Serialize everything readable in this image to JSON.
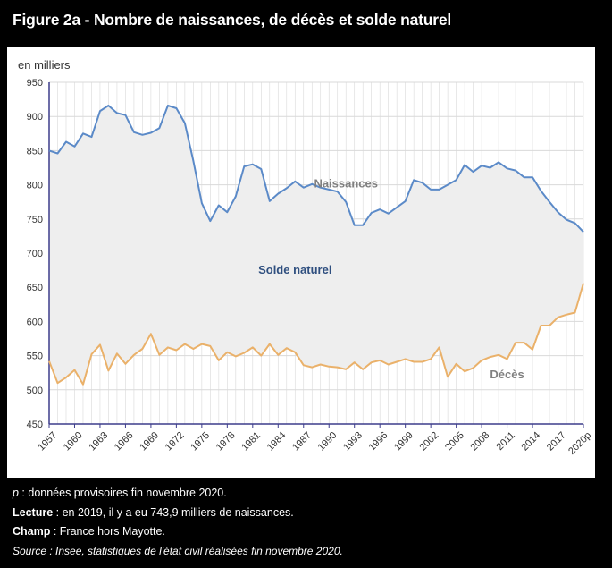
{
  "figure": {
    "title": "Figure 2a - Nombre de naissances, de décès et solde naturel"
  },
  "notes": {
    "provisional_key": "p",
    "provisional_text": " : données provisoires fin novembre 2020.",
    "reading_label": "Lecture",
    "reading_text": " : en 2019, il y a eu 743,9 milliers de naissances.",
    "scope_label": "Champ",
    "scope_text": " : France hors Mayotte.",
    "source": "Source : Insee, statistiques de l'état civil réalisées fin novembre 2020."
  },
  "colors": {
    "births": "#5b8ac8",
    "deaths": "#eab16a",
    "fill": "#eeeeee",
    "grid": "#d9d9d9",
    "axis": "#3d3d8c",
    "births_label": "#808080",
    "solde_label": "#2f4f7f",
    "deaths_label": "#808080"
  },
  "chart_data": {
    "type": "line",
    "ylabel": "en milliers",
    "ylim": [
      450,
      950
    ],
    "yticks": [
      450,
      500,
      550,
      600,
      650,
      700,
      750,
      800,
      850,
      900,
      950
    ],
    "xlim": [
      1957,
      2020
    ],
    "xtick_labels": [
      "1957",
      "1960",
      "1963",
      "1966",
      "1969",
      "1972",
      "1975",
      "1978",
      "1981",
      "1984",
      "1987",
      "1990",
      "1993",
      "1996",
      "1999",
      "2002",
      "2005",
      "2008",
      "2011",
      "2014",
      "2017",
      "2020p"
    ],
    "grid": true,
    "x": [
      1957,
      1958,
      1959,
      1960,
      1961,
      1962,
      1963,
      1964,
      1965,
      1966,
      1967,
      1968,
      1969,
      1970,
      1971,
      1972,
      1973,
      1974,
      1975,
      1976,
      1977,
      1978,
      1979,
      1980,
      1981,
      1982,
      1983,
      1984,
      1985,
      1986,
      1987,
      1988,
      1989,
      1990,
      1991,
      1992,
      1993,
      1994,
      1995,
      1996,
      1997,
      1998,
      1999,
      2000,
      2001,
      2002,
      2003,
      2004,
      2005,
      2006,
      2007,
      2008,
      2009,
      2010,
      2011,
      2012,
      2013,
      2014,
      2015,
      2016,
      2017,
      2018,
      2019,
      2020
    ],
    "series": [
      {
        "name": "Naissances",
        "values": [
          850,
          846,
          863,
          856,
          875,
          870,
          908,
          916,
          905,
          902,
          877,
          873,
          876,
          883,
          916,
          912,
          890,
          835,
          773,
          747,
          770,
          760,
          783,
          827,
          830,
          823,
          776,
          787,
          795,
          805,
          796,
          801,
          796,
          793,
          790,
          775,
          741,
          741,
          759,
          764,
          758,
          767,
          776,
          807,
          803,
          793,
          793,
          800,
          807,
          829,
          819,
          828,
          825,
          833,
          824,
          821,
          811,
          811,
          791,
          775,
          760,
          749,
          744,
          731
        ]
      },
      {
        "name": "Décès",
        "values": [
          542,
          510,
          518,
          529,
          508,
          552,
          566,
          528,
          553,
          538,
          551,
          560,
          582,
          551,
          562,
          558,
          567,
          560,
          567,
          564,
          543,
          555,
          549,
          554,
          562,
          550,
          567,
          551,
          561,
          555,
          536,
          533,
          537,
          534,
          533,
          530,
          540,
          530,
          540,
          543,
          537,
          541,
          545,
          541,
          541,
          545,
          562,
          519,
          538,
          527,
          532,
          543,
          548,
          551,
          545,
          569,
          569,
          559,
          594,
          594,
          606,
          610,
          613,
          656
        ]
      }
    ],
    "annotations": [
      {
        "text": "Naissances",
        "x": 1992,
        "y": 796
      },
      {
        "text": "Solde naturel",
        "x": 1986,
        "y": 670
      },
      {
        "text": "Décès",
        "x": 2011,
        "y": 517
      }
    ]
  }
}
